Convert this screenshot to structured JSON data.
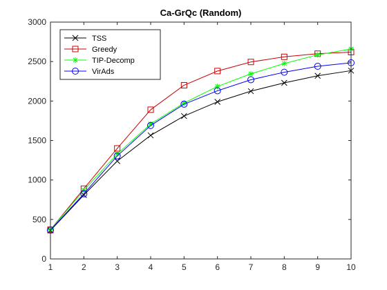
{
  "chart_data": {
    "type": "line",
    "title": "Ca-GrQc (Random)",
    "xlabel": "",
    "ylabel": "",
    "x": [
      1,
      2,
      3,
      4,
      5,
      6,
      7,
      8,
      9,
      10
    ],
    "xlim": [
      1,
      10
    ],
    "ylim": [
      0,
      3000
    ],
    "xticks": [
      1,
      2,
      3,
      4,
      5,
      6,
      7,
      8,
      9,
      10
    ],
    "yticks": [
      0,
      500,
      1000,
      1500,
      2000,
      2500,
      3000
    ],
    "grid": false,
    "legend_position": "top-left",
    "series": [
      {
        "name": "TSS",
        "color": "#000000",
        "marker": "x",
        "values": [
          360,
          810,
          1240,
          1565,
          1810,
          1990,
          2125,
          2230,
          2320,
          2385
        ]
      },
      {
        "name": "Greedy",
        "color": "#cc0000",
        "marker": "square",
        "values": [
          370,
          890,
          1400,
          1890,
          2200,
          2380,
          2495,
          2560,
          2600,
          2620
        ]
      },
      {
        "name": "TIP-Decomp",
        "color": "#00ff00",
        "marker": "asterisk",
        "values": [
          370,
          870,
          1330,
          1710,
          1975,
          2185,
          2345,
          2475,
          2585,
          2660
        ]
      },
      {
        "name": "VirAds",
        "color": "#0000ff",
        "marker": "circle",
        "values": [
          365,
          825,
          1305,
          1690,
          1960,
          2130,
          2270,
          2365,
          2440,
          2485
        ]
      }
    ]
  }
}
